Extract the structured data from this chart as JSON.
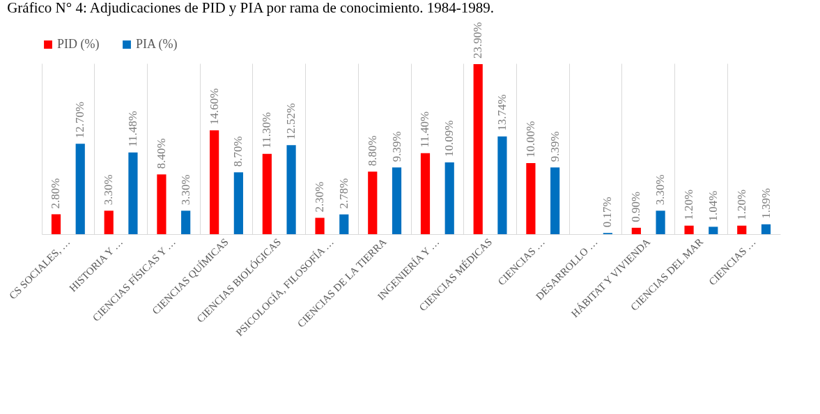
{
  "chart_data": {
    "type": "bar",
    "title": "Gráfico N° 4: Adjudicaciones de PID y PIA por rama de conocimiento. 1984-1989.",
    "categories": [
      "CS SOCIALES, …",
      "HISTORIA Y …",
      "CIENCIAS FÍSICAS Y …",
      "CIENCIAS QUÍMICAS",
      "CIENCIAS BIOLÓGICAS",
      "PSICOLOGÍA, FILOSOFÍA …",
      "CIENCIAS DE LA TIERRA",
      "INGENIERÍA Y …",
      "CIENCIAS MÉDICAS",
      "CIENCIAS …",
      "DESARROLLO …",
      "HÁBITAT Y VIVIENDA",
      "CIENCIAS DEL MAR",
      "CIENCIAS …"
    ],
    "series": [
      {
        "name": "PID (%)",
        "color": "#ff0000",
        "values": [
          2.8,
          3.3,
          8.4,
          14.6,
          11.3,
          2.3,
          8.8,
          11.4,
          23.9,
          10.0,
          null,
          0.9,
          1.2,
          1.2
        ],
        "value_labels": [
          "2.80%",
          "3.30%",
          "8.40%",
          "14.60%",
          "11.30%",
          "2.30%",
          "8.80%",
          "11.40%",
          "23.90%",
          "10.00%",
          null,
          "0.90%",
          "1.20%",
          "1.20%"
        ]
      },
      {
        "name": "PIA (%)",
        "color": "#0070c0",
        "values": [
          12.7,
          11.48,
          3.3,
          8.7,
          12.52,
          2.78,
          9.39,
          10.09,
          13.74,
          9.39,
          0.17,
          3.3,
          1.04,
          1.39
        ],
        "value_labels": [
          "12.70%",
          "11.48%",
          "3.30%",
          "8.70%",
          "12.52%",
          "2.78%",
          "9.39%",
          "10.09%",
          "13.74%",
          "9.39%",
          "0.17%",
          "3.30%",
          "1.04%",
          "1.39%"
        ]
      }
    ],
    "legend": "top",
    "grid": "x"
  }
}
